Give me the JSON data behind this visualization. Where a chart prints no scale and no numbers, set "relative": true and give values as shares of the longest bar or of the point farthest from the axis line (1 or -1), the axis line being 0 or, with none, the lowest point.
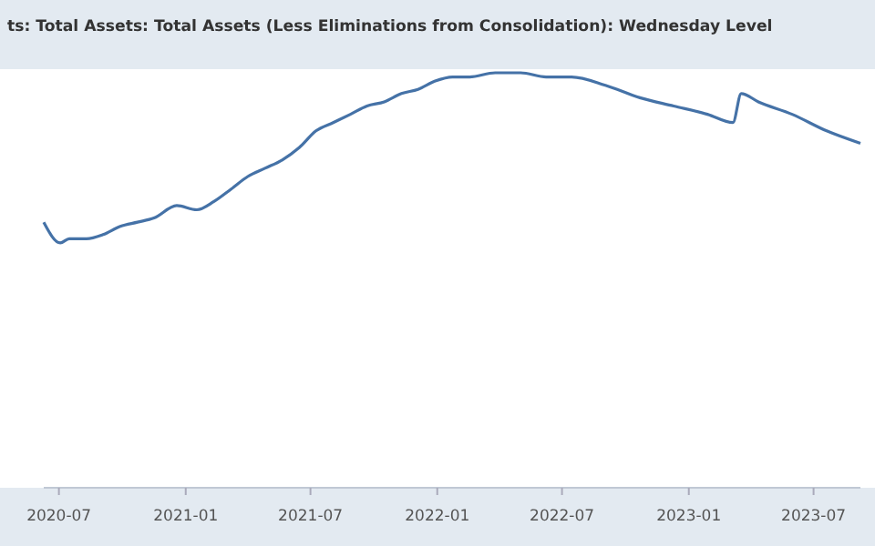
{
  "chart_data": {
    "type": "line",
    "title": "ts: Total Assets: Total Assets (Less Eliminations from Consolidation): Wednesday Level",
    "relative": true,
    "xlim": [
      "2020-06-09",
      "2023-09-07"
    ],
    "xticks": [
      {
        "value": "2020-07-01",
        "label": "2020-07"
      },
      {
        "value": "2021-01-01",
        "label": "2021-01"
      },
      {
        "value": "2021-07-01",
        "label": "2021-07"
      },
      {
        "value": "2022-01-01",
        "label": "2022-01"
      },
      {
        "value": "2022-07-01",
        "label": "2022-07"
      },
      {
        "value": "2023-01-01",
        "label": "2023-01"
      },
      {
        "value": "2023-07-01",
        "label": "2023-07"
      }
    ],
    "series": [
      {
        "color": "#4572a7",
        "x": [
          "2020-06-09",
          "2020-07-03",
          "2020-07-16",
          "2020-08-10",
          "2020-09-03",
          "2020-09-28",
          "2020-10-23",
          "2020-11-16",
          "2020-12-19",
          "2021-01-17",
          "2021-02-11",
          "2021-03-08",
          "2021-04-01",
          "2021-04-26",
          "2021-05-21",
          "2021-06-15",
          "2021-07-09",
          "2021-08-03",
          "2021-08-28",
          "2021-09-21",
          "2021-10-16",
          "2021-11-10",
          "2021-12-04",
          "2021-12-29",
          "2022-01-23",
          "2022-02-17",
          "2022-03-26",
          "2022-05-02",
          "2022-06-08",
          "2022-07-15",
          "2022-09-02",
          "2022-10-22",
          "2022-12-10",
          "2023-01-28",
          "2023-03-06",
          "2023-03-18",
          "2023-04-12",
          "2023-05-31",
          "2023-07-20",
          "2023-09-07"
        ],
        "values": [
          0.64,
          0.59,
          0.6,
          0.6,
          0.61,
          0.63,
          0.64,
          0.65,
          0.68,
          0.67,
          0.69,
          0.72,
          0.75,
          0.77,
          0.79,
          0.82,
          0.86,
          0.88,
          0.9,
          0.92,
          0.93,
          0.95,
          0.96,
          0.98,
          0.99,
          0.99,
          1,
          1.0,
          0.99,
          0.99,
          0.97,
          0.94,
          0.92,
          0.9,
          0.88,
          0.95,
          0.93,
          0.9,
          0.86,
          0.83
        ]
      }
    ]
  }
}
